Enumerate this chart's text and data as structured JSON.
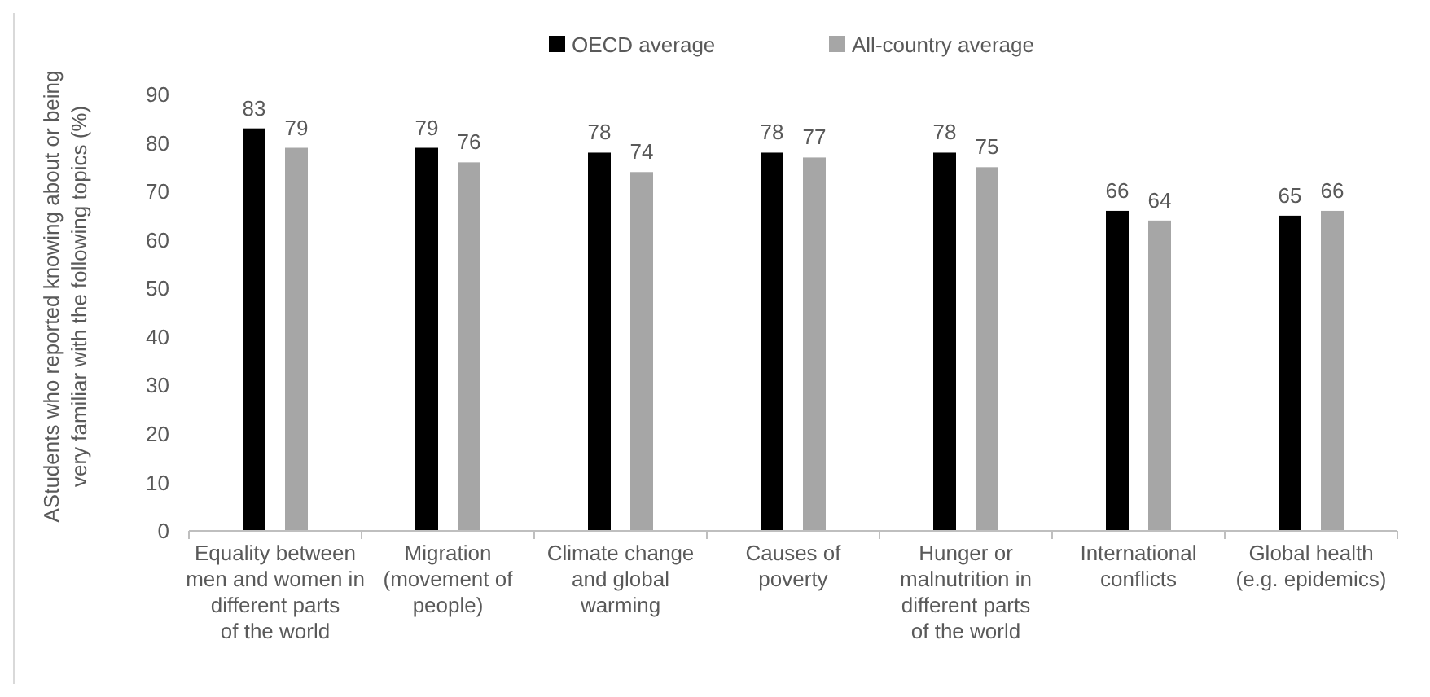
{
  "chart_data": {
    "type": "bar",
    "ylabel": "AStudents who reported knowing about or being very familiar with the following topics (%)",
    "categories": [
      "Equality between men and women in different parts of the world",
      "Migration (movement of people)",
      "Climate change and global warming",
      "Causes of poverty",
      "Hunger or malnutrition in different parts of the world",
      "International conflicts",
      "Global health (e.g. epidemics)"
    ],
    "series": [
      {
        "name": "OECD average",
        "color": "#000000",
        "values": [
          83,
          79,
          78,
          78,
          78,
          66,
          65
        ]
      },
      {
        "name": "All-country average",
        "color": "#a6a6a6",
        "values": [
          79,
          76,
          74,
          77,
          75,
          64,
          66
        ]
      }
    ],
    "ylim": [
      0,
      90
    ],
    "yticks": [
      0,
      10,
      20,
      30,
      40,
      50,
      60,
      70,
      80,
      90
    ],
    "data_labels": true,
    "legend": "top",
    "grid": false
  }
}
